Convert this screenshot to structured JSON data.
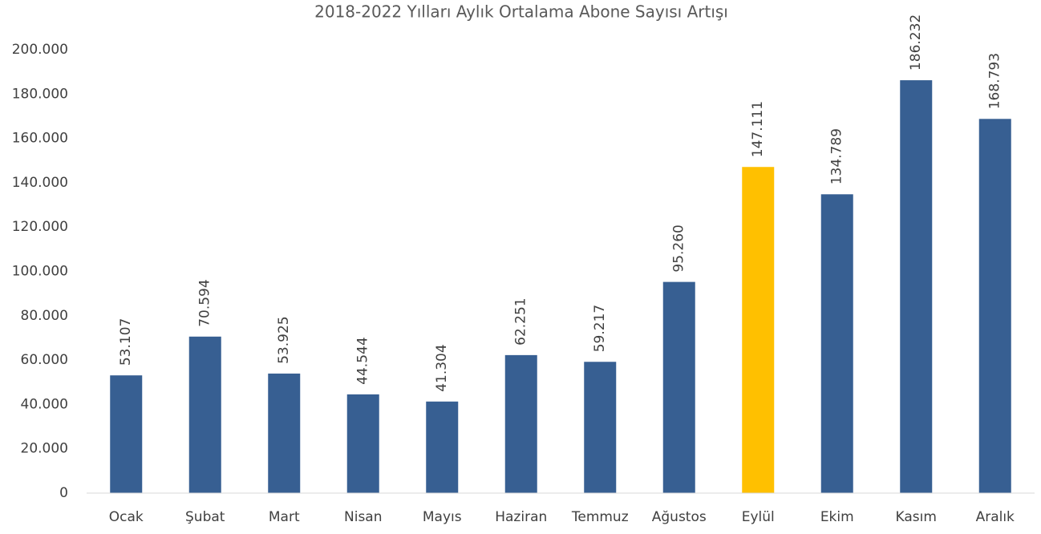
{
  "chart_data": {
    "type": "bar",
    "title": "2018-2022 Yılları Aylık Ortalama Abone Sayısı Artışı",
    "categories": [
      "Ocak",
      "Şubat",
      "Mart",
      "Nisan",
      "Mayıs",
      "Haziran",
      "Temmuz",
      "Ağustos",
      "Eylül",
      "Ekim",
      "Kasım",
      "Aralık"
    ],
    "values": [
      53107,
      70594,
      53925,
      44544,
      41304,
      62251,
      59217,
      95260,
      147111,
      134789,
      186232,
      168793
    ],
    "value_labels": [
      "53.107",
      "70.594",
      "53.925",
      "44.544",
      "41.304",
      "62.251",
      "59.217",
      "95.260",
      "147.111",
      "134.789",
      "186.232",
      "168.793"
    ],
    "colors": [
      "#375f92",
      "#375f92",
      "#375f92",
      "#375f92",
      "#375f92",
      "#375f92",
      "#375f92",
      "#375f92",
      "#ffc000",
      "#375f92",
      "#375f92",
      "#375f92"
    ],
    "ylim": [
      0,
      200000
    ],
    "yticks": [
      0,
      {
        "value": 20000,
        "label": "20.000"
      },
      {
        "value": 40000,
        "label": "40.000"
      },
      {
        "value": 60000,
        "label": "60.000"
      },
      {
        "value": 80000,
        "label": "80.000"
      },
      {
        "value": 100000,
        "label": "100.000"
      },
      {
        "value": 120000,
        "label": "120.000"
      },
      {
        "value": 140000,
        "label": "140.000"
      },
      {
        "value": 160000,
        "label": "160.000"
      },
      {
        "value": 180000,
        "label": "180.000"
      },
      {
        "value": 200000,
        "label": "200.000"
      }
    ],
    "grid": false
  }
}
